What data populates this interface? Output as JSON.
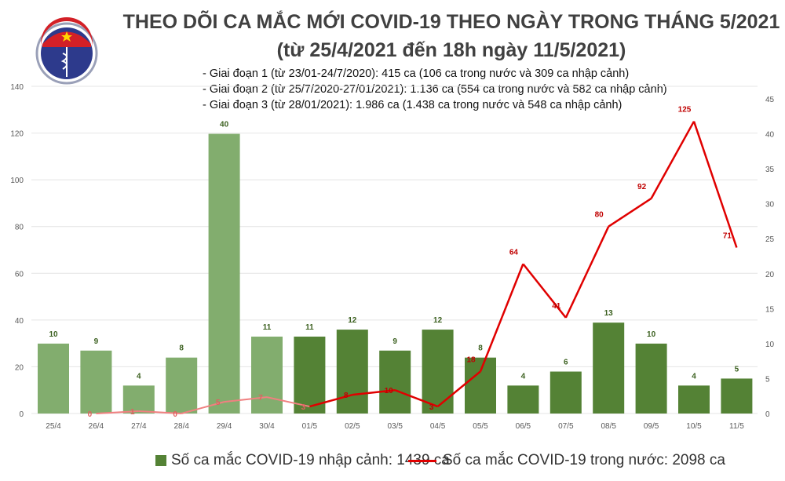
{
  "header": {
    "title": "THEO DÕI CA MẮC MỚI COVID-19 THEO NGÀY TRONG THÁNG 5/2021",
    "subtitle": "(từ 25/4/2021 đến 18h ngày 11/5/2021)",
    "notes": [
      "- Giai đoạn 1 (từ 23/01-24/7/2020): 415 ca (106 ca trong nước và 309 ca nhập cảnh)",
      "- Giai đoạn 2 (từ 25/7/2020-27/01/2021): 1.136 ca (554 ca trong nước và 582 ca nhập cảnh)",
      "- Giai đoạn 3 (từ 28/01/2021): 1.986 ca (1.438 ca trong nước và 548 ca nhập cảnh)"
    ],
    "logo_text": "BỘ Y TẾ MINISTRY OF HEALTH"
  },
  "chart_data": {
    "type": "bar+line",
    "categories": [
      "25/4",
      "26/4",
      "27/4",
      "28/4",
      "29/4",
      "30/4",
      "01/5",
      "02/5",
      "03/5",
      "04/5",
      "05/5",
      "06/5",
      "07/5",
      "08/5",
      "09/5",
      "10/5",
      "11/5"
    ],
    "series": [
      {
        "name": "Số ca mắc COVID-19 nhập cảnh: 1439 ca",
        "type": "bar",
        "axis": "right",
        "color": "#548235",
        "color_early": "#82ad6e",
        "values": [
          10,
          9,
          4,
          8,
          40,
          11,
          11,
          12,
          9,
          12,
          8,
          4,
          6,
          13,
          10,
          4,
          5
        ]
      },
      {
        "name": "Số ca mắc COVID-19 trong nước: 2098 ca",
        "type": "line",
        "axis": "left",
        "color": "#e00000",
        "color_early": "#f08080",
        "values": [
          null,
          0,
          1,
          0,
          5,
          7,
          3,
          8,
          10,
          3,
          18,
          64,
          41,
          80,
          92,
          125,
          71
        ]
      }
    ],
    "left_axis": {
      "range": [
        0,
        140
      ],
      "ticks": [
        0,
        20,
        40,
        60,
        80,
        100,
        120,
        140
      ]
    },
    "right_axis": {
      "range": [
        0,
        45
      ],
      "ticks": [
        0,
        5,
        10,
        15,
        20,
        25,
        30,
        35,
        40,
        45
      ]
    },
    "grid": true,
    "legend": "bottom"
  }
}
